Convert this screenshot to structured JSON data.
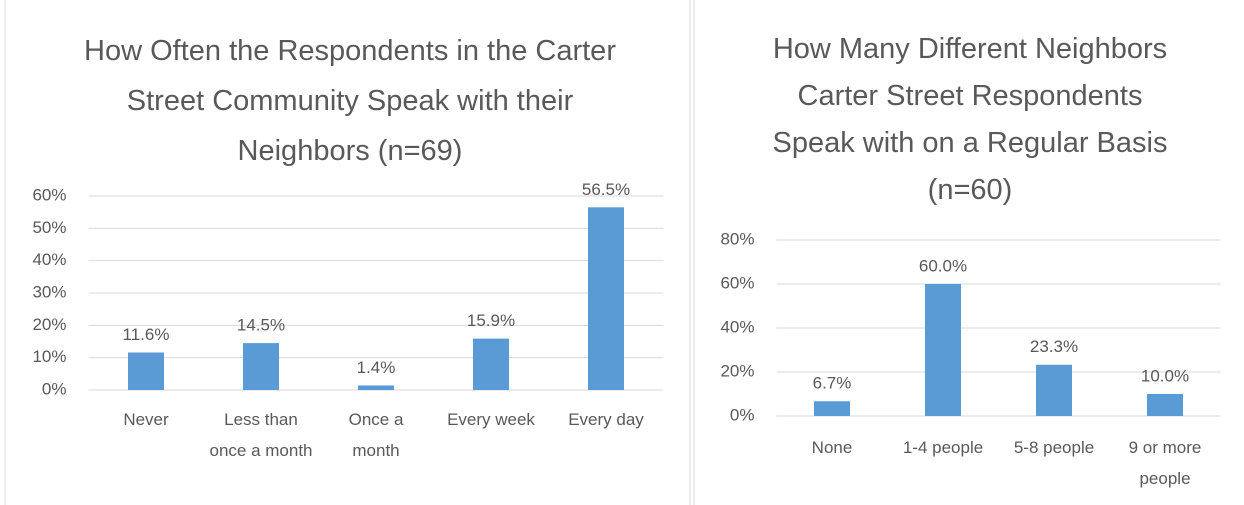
{
  "chart_data": [
    {
      "type": "bar",
      "title": "How Often the Respondents in the Carter Street Community Speak with their Neighbors (n=69)",
      "categories": [
        "Never",
        "Less than once a month",
        "Once a month",
        "Every week",
        "Every day"
      ],
      "values": [
        11.6,
        14.5,
        1.4,
        15.9,
        56.5
      ],
      "value_labels": [
        "11.6%",
        "14.5%",
        "1.4%",
        "15.9%",
        "56.5%"
      ],
      "color": "#5b9bd5",
      "ylim": [
        0,
        60
      ],
      "yticks": [
        {
          "value": 0,
          "label": "0%"
        },
        {
          "value": 10,
          "label": "10%"
        },
        {
          "value": 20,
          "label": "20%"
        },
        {
          "value": 30,
          "label": "30%"
        },
        {
          "value": 40,
          "label": "40%"
        },
        {
          "value": 50,
          "label": "50%"
        },
        {
          "value": 60,
          "label": "60%"
        }
      ],
      "grid": true
    },
    {
      "type": "bar",
      "title": "How Many Different Neighbors Carter Street Respondents Speak with on a Regular Basis (n=60)",
      "categories": [
        "None",
        "1-4 people",
        "5-8 people",
        "9 or more people"
      ],
      "values": [
        6.7,
        60.0,
        23.3,
        10.0
      ],
      "value_labels": [
        "6.7%",
        "60.0%",
        "23.3%",
        "10.0%"
      ],
      "color": "#5b9bd5",
      "ylim": [
        0,
        80
      ],
      "yticks": [
        {
          "value": 0,
          "label": "0%"
        },
        {
          "value": 20,
          "label": "20%"
        },
        {
          "value": 40,
          "label": "40%"
        },
        {
          "value": 60,
          "label": "60%"
        },
        {
          "value": 80,
          "label": "80%"
        }
      ],
      "grid": true
    }
  ]
}
